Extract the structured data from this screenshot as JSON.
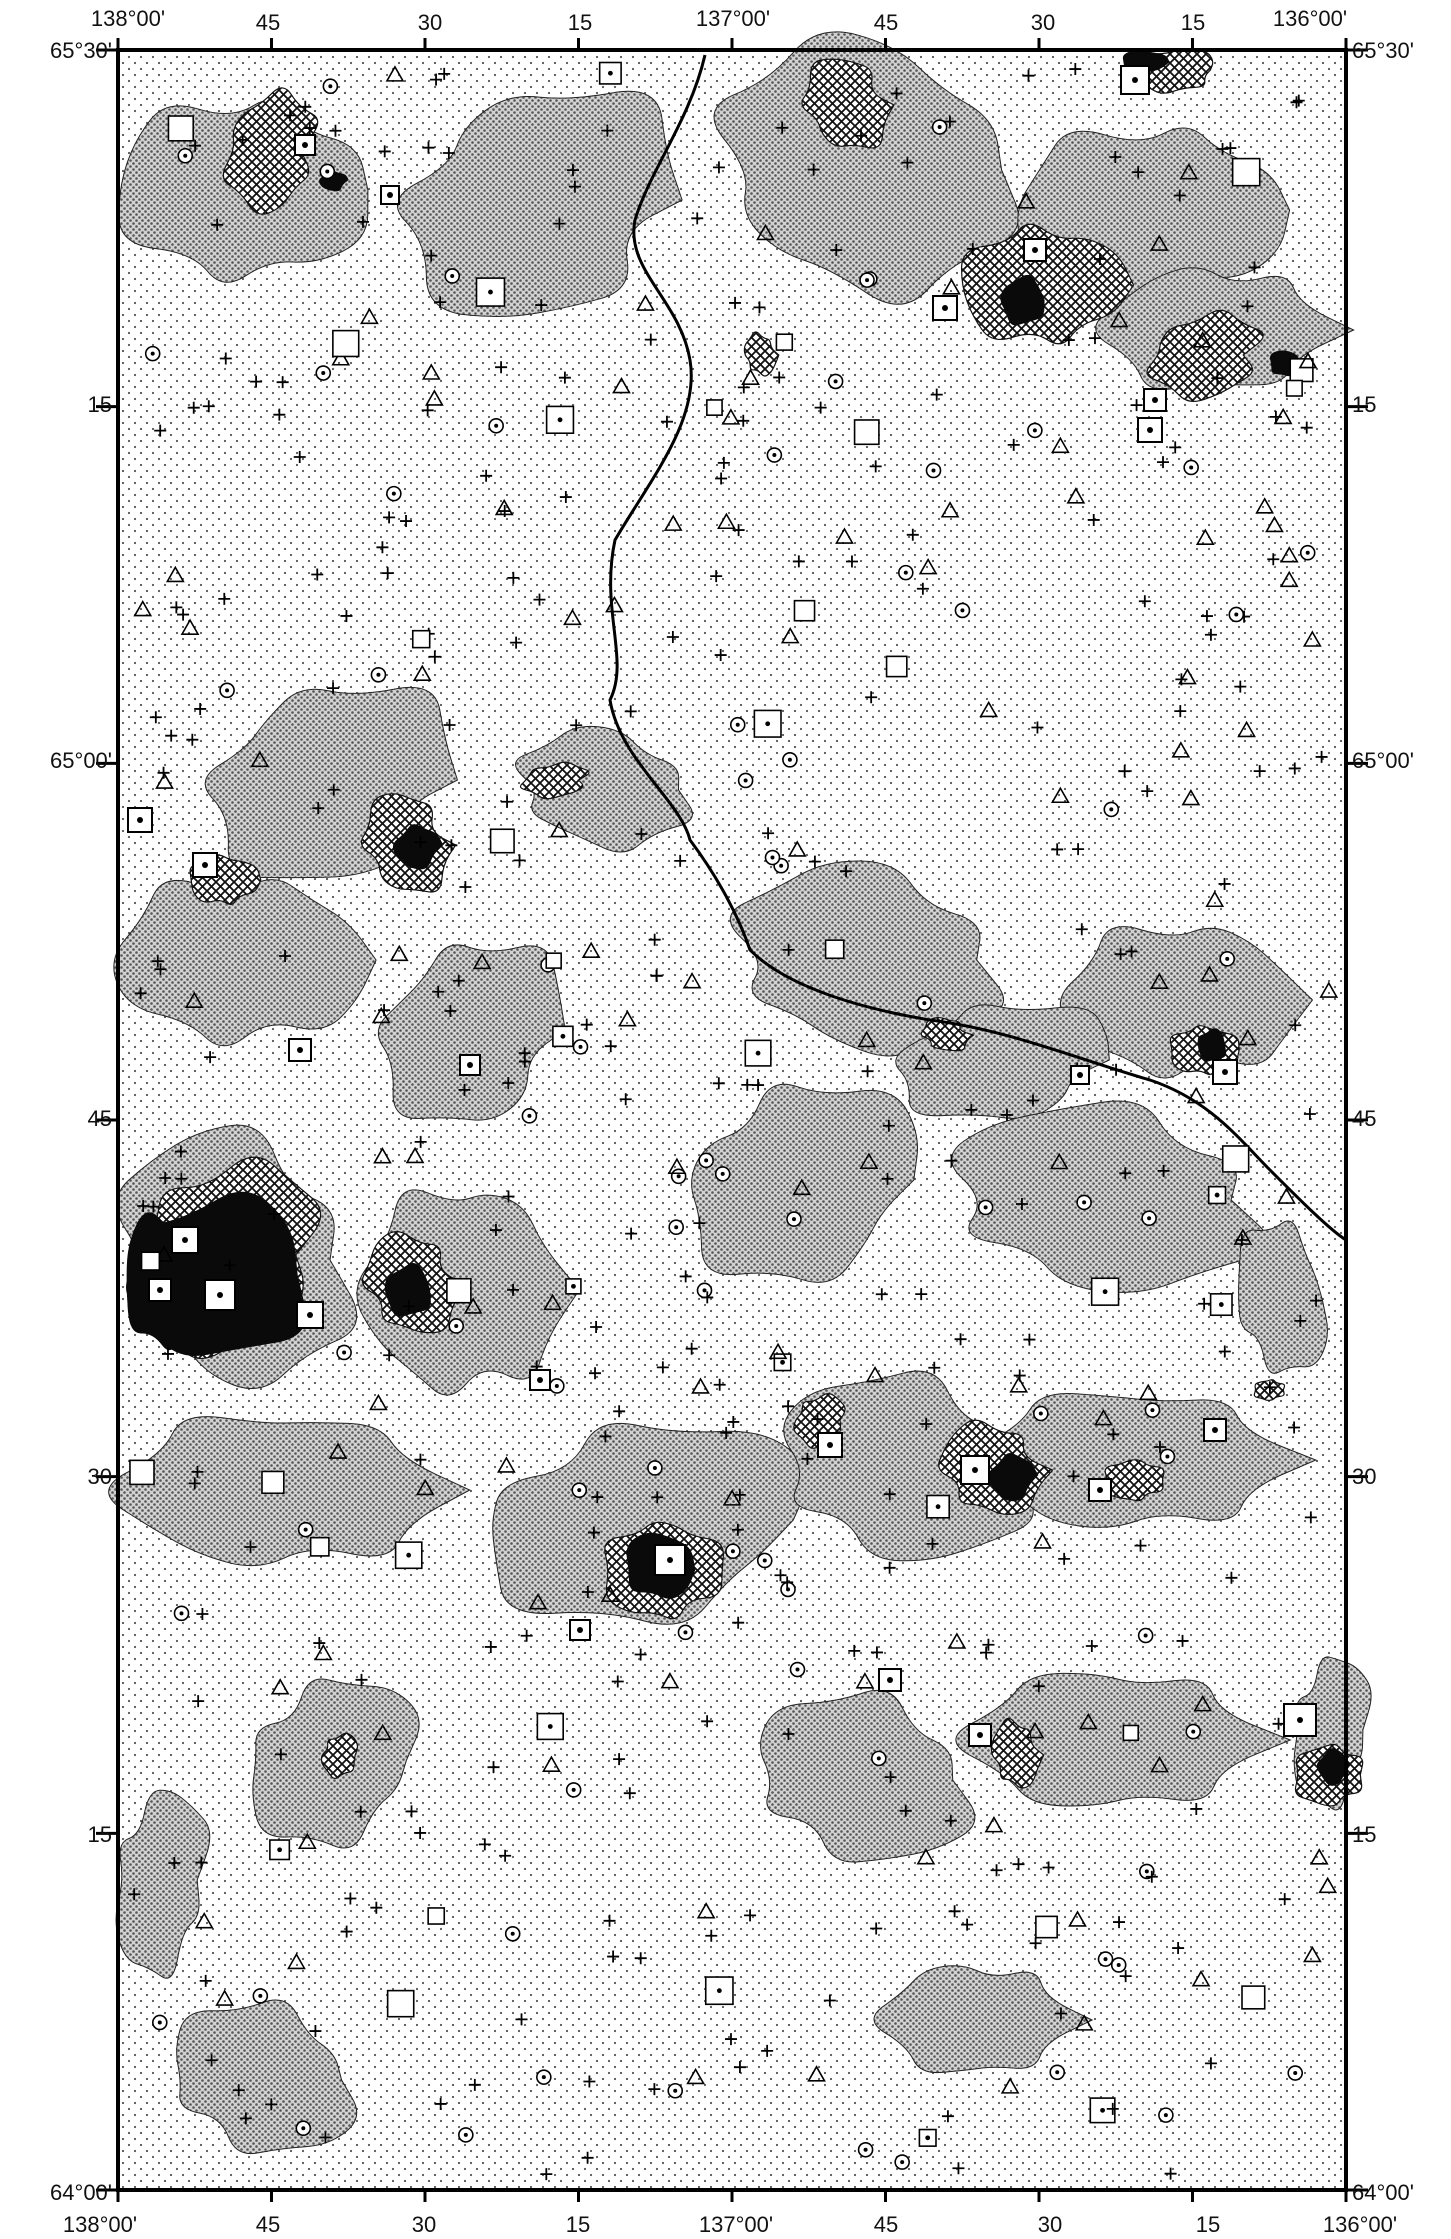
{
  "map": {
    "longitude_labels_top": [
      "138°00'",
      "45",
      "30",
      "15",
      "137°00'",
      "45",
      "30",
      "15",
      "136°00'"
    ],
    "longitude_labels_bottom": [
      "138°00'",
      "45",
      "30",
      "15",
      "137°00'",
      "45",
      "30",
      "15",
      "136°00'"
    ],
    "latitude_labels_left": [
      "65°30'",
      "15",
      "65°00'",
      "45",
      "30",
      "15",
      "64°00'"
    ],
    "latitude_labels_right": [
      "65°30'",
      "15",
      "65°00'",
      "45",
      "30",
      "15",
      "64°00'"
    ],
    "extent": {
      "lon_west": 138.0,
      "lon_east": 136.0,
      "lat_south": 64.0,
      "lat_north": 65.5
    },
    "symbol_types": [
      "cross",
      "triangle",
      "circled-dot",
      "square",
      "dotted-square"
    ],
    "shading_classes": [
      "dot-fine",
      "dot-dense",
      "cross-hatch",
      "solid-black"
    ]
  }
}
